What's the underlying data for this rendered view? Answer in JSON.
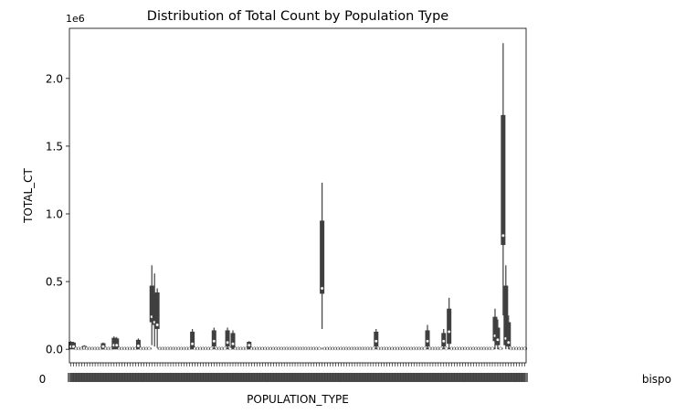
{
  "chart_data": {
    "type": "violin",
    "title": "Distribution of Total Count by Population Type",
    "xlabel": "POPULATION_TYPE",
    "ylabel": "TOTAL_CT",
    "y_offset_label": "1e6",
    "yticks": [
      0.0,
      0.5,
      1.0,
      1.5,
      2.0
    ],
    "ytick_labels": [
      "0.0",
      "0.5",
      "1.0",
      "1.5",
      "2.0"
    ],
    "ylim": [
      -0.1,
      2.37
    ],
    "y_units": "millions",
    "category_count": 169,
    "xtick_label_note": "169 overlapping category labels; only fragments legible",
    "left_tick_label_fragment": "0",
    "right_tick_label_fragment": "bispo",
    "grid": false,
    "legend": "none",
    "colors": {
      "box": "#3f3f3f",
      "whisker": "#3f3f3f",
      "median": "#ffffff",
      "axis": "#000000"
    },
    "series": [
      {
        "distributions_in_millions": [
          {
            "index": 0,
            "q1": 0.0,
            "median": 0.02,
            "q3": 0.055,
            "min": 0.0,
            "max": 0.06
          },
          {
            "index": 1,
            "q1": 0.0,
            "median": 0.02,
            "q3": 0.05,
            "min": 0.0,
            "max": 0.055
          },
          {
            "index": 5,
            "q1": 0.0,
            "median": 0.01,
            "q3": 0.025,
            "min": 0.0,
            "max": 0.03
          },
          {
            "index": 12,
            "q1": 0.0,
            "median": 0.02,
            "q3": 0.045,
            "min": 0.0,
            "max": 0.05
          },
          {
            "index": 16,
            "q1": 0.0,
            "median": 0.03,
            "q3": 0.085,
            "min": 0.0,
            "max": 0.095
          },
          {
            "index": 17,
            "q1": 0.0,
            "median": 0.03,
            "q3": 0.08,
            "min": 0.0,
            "max": 0.09
          },
          {
            "index": 25,
            "q1": 0.0,
            "median": 0.025,
            "q3": 0.07,
            "min": 0.0,
            "max": 0.08
          },
          {
            "index": 30,
            "q1": 0.2,
            "median": 0.24,
            "q3": 0.47,
            "min": 0.03,
            "max": 0.62
          },
          {
            "index": 31,
            "q1": 0.18,
            "median": 0.2,
            "q3": 0.41,
            "min": 0.02,
            "max": 0.56
          },
          {
            "index": 32,
            "q1": 0.15,
            "median": 0.18,
            "q3": 0.42,
            "min": 0.01,
            "max": 0.45
          },
          {
            "index": 45,
            "q1": 0.0,
            "median": 0.04,
            "q3": 0.13,
            "min": 0.0,
            "max": 0.15
          },
          {
            "index": 53,
            "q1": 0.02,
            "median": 0.06,
            "q3": 0.14,
            "min": 0.0,
            "max": 0.16
          },
          {
            "index": 58,
            "q1": 0.02,
            "median": 0.05,
            "q3": 0.14,
            "min": 0.0,
            "max": 0.16
          },
          {
            "index": 60,
            "q1": 0.01,
            "median": 0.04,
            "q3": 0.12,
            "min": 0.0,
            "max": 0.14
          },
          {
            "index": 66,
            "q1": 0.0,
            "median": 0.03,
            "q3": 0.055,
            "min": 0.0,
            "max": 0.06
          },
          {
            "index": 93,
            "q1": 0.41,
            "median": 0.45,
            "q3": 0.95,
            "min": 0.15,
            "max": 1.23
          },
          {
            "index": 113,
            "q1": 0.02,
            "median": 0.06,
            "q3": 0.13,
            "min": 0.0,
            "max": 0.15
          },
          {
            "index": 132,
            "q1": 0.02,
            "median": 0.06,
            "q3": 0.14,
            "min": 0.0,
            "max": 0.18
          },
          {
            "index": 138,
            "q1": 0.02,
            "median": 0.06,
            "q3": 0.12,
            "min": 0.0,
            "max": 0.15
          },
          {
            "index": 140,
            "q1": 0.04,
            "median": 0.13,
            "q3": 0.3,
            "min": 0.0,
            "max": 0.38
          },
          {
            "index": 157,
            "q1": 0.06,
            "median": 0.1,
            "q3": 0.24,
            "min": 0.0,
            "max": 0.3
          },
          {
            "index": 158,
            "q1": 0.03,
            "median": 0.07,
            "q3": 0.16,
            "min": 0.0,
            "max": 0.22
          },
          {
            "index": 160,
            "q1": 0.77,
            "median": 0.84,
            "q3": 1.73,
            "min": 0.25,
            "max": 2.26
          },
          {
            "index": 161,
            "q1": 0.03,
            "median": 0.08,
            "q3": 0.47,
            "min": 0.0,
            "max": 0.62
          },
          {
            "index": 162,
            "q1": 0.02,
            "median": 0.05,
            "q3": 0.2,
            "min": 0.0,
            "max": 0.25
          }
        ]
      }
    ]
  }
}
